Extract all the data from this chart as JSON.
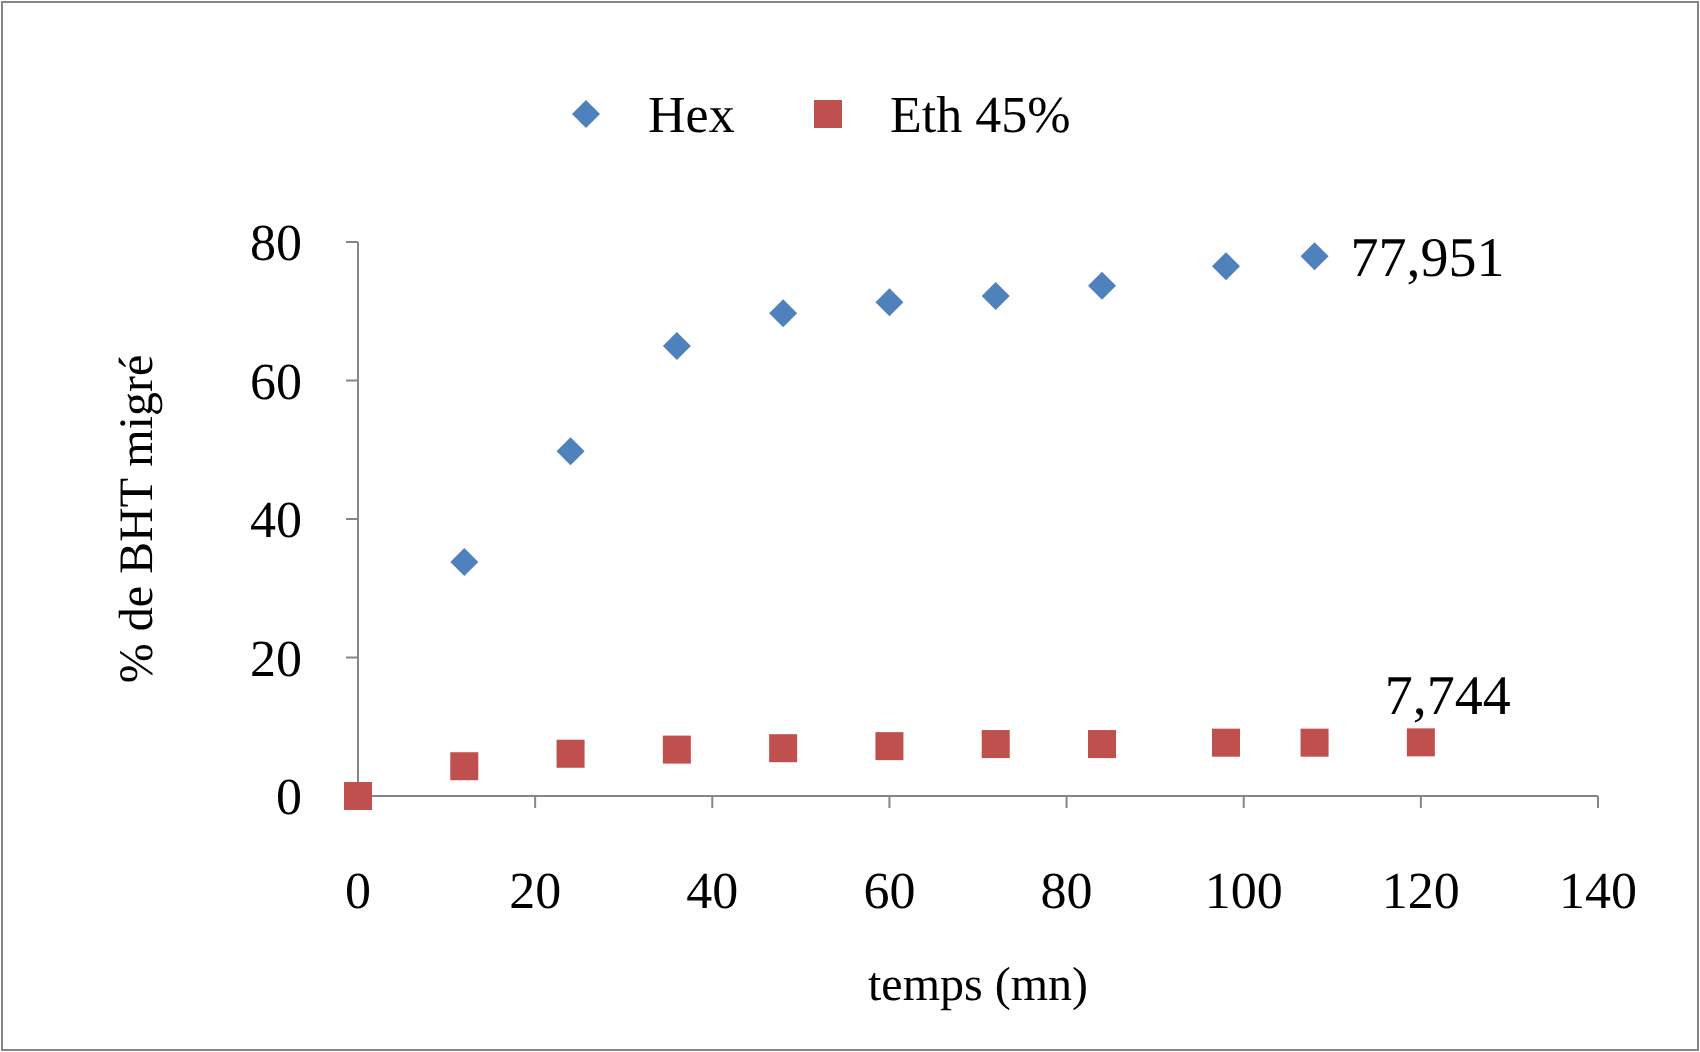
{
  "chart_data": {
    "type": "scatter",
    "xlabel": "temps (mn)",
    "ylabel": "% de BHT migré",
    "xlim": [
      0,
      140
    ],
    "xticks": [
      0,
      20,
      40,
      60,
      80,
      100,
      120,
      140
    ],
    "ylim": [
      0,
      80
    ],
    "yticks": [
      0,
      20,
      40,
      60,
      80
    ],
    "grid": false,
    "legend": "top",
    "series": [
      {
        "name": "Hex",
        "color": "#4f81bd",
        "marker": "diamond",
        "x": [
          12,
          24,
          36,
          48,
          60,
          72,
          84,
          98,
          108
        ],
        "values": [
          33.8,
          49.8,
          65.0,
          69.7,
          71.3,
          72.2,
          73.7,
          76.5,
          77.951
        ]
      },
      {
        "name": "Eth 45%",
        "color": "#c0504d",
        "marker": "square",
        "x": [
          0,
          12,
          24,
          36,
          48,
          60,
          72,
          84,
          98,
          108,
          120
        ],
        "values": [
          0,
          4.3,
          6.1,
          6.7,
          6.9,
          7.2,
          7.5,
          7.5,
          7.7,
          7.7,
          7.744
        ]
      }
    ],
    "annotations": [
      {
        "text": "77,951",
        "x": 108,
        "y": 77.951
      },
      {
        "text": "7,744",
        "x": 120,
        "y": 7.744
      }
    ]
  }
}
